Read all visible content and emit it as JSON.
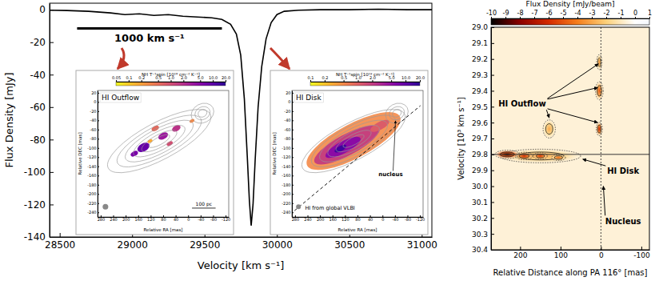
{
  "chart_data": [
    {
      "type": "line",
      "xlabel": "Velocity [km s⁻¹]",
      "ylabel": "Flux Density [mJy]",
      "xlim": [
        28430,
        31070
      ],
      "ylim": [
        -140,
        4
      ],
      "xticks": [
        28500,
        29000,
        29500,
        30000,
        30500,
        31000
      ],
      "yticks": [
        0,
        -20,
        -40,
        -60,
        -80,
        -100,
        -120,
        -140
      ],
      "color": "#000000",
      "x": [
        28430,
        28550,
        28700,
        28850,
        28950,
        29050,
        29150,
        29250,
        29350,
        29450,
        29550,
        29620,
        29680,
        29720,
        29750,
        29775,
        29795,
        29810,
        29822,
        29835,
        29850,
        29870,
        29895,
        29925,
        29960,
        30000,
        30050,
        30150,
        30300,
        30500,
        30700,
        30900,
        31070
      ],
      "values": [
        -0.3,
        -0.5,
        -1,
        -2,
        -3,
        -2.5,
        -3.5,
        -3,
        -4,
        -4.5,
        -5,
        -6,
        -9,
        -15,
        -28,
        -55,
        -90,
        -118,
        -133,
        -120,
        -92,
        -60,
        -35,
        -18,
        -8,
        -3,
        -1,
        -0.3,
        0,
        0,
        0.3,
        0,
        0
      ],
      "annotations": [
        {
          "text": "1000 km s⁻¹",
          "x": [
            28620,
            29620
          ],
          "y": -11.5
        }
      ],
      "insets": [
        {
          "title": "HI Outflow",
          "xlabel": "Relative RA [mas]",
          "ylabel": "Relative DEC [mas]",
          "xlim": [
            290,
            -130
          ],
          "xticks": [
            280,
            240,
            200,
            160,
            120,
            80,
            40,
            0,
            -40,
            -80,
            -120
          ],
          "ylim": [
            -250,
            25
          ],
          "yticks": [
            20,
            0,
            -20,
            -40,
            -60,
            -80,
            -100,
            -120,
            -140,
            -160,
            -180,
            -200,
            -220,
            -240
          ],
          "colorbar": {
            "label": "NH T⁻¹spin [10¹⁸ cm⁻² K⁻¹]",
            "lim": [
              0.05,
              20
            ],
            "log": true,
            "ticks": [
              0.05,
              0.1,
              0.2,
              0.5,
              {
                "value": 1,
                "label": "1.0"
              },
              {
                "value": 2,
                "label": "2.0"
              },
              {
                "value": 5,
                "label": "5.0"
              },
              {
                "value": 10,
                "label": "10.0"
              },
              {
                "value": 20,
                "label": "20.0"
              }
            ]
          },
          "scale_bar": "100 pc"
        },
        {
          "title": "HI Disk",
          "xlabel": "Relative RA [mas]",
          "ylabel": "Relative DEC [mas]",
          "xlim": [
            290,
            -130
          ],
          "xticks": [
            280,
            240,
            200,
            160,
            120,
            80,
            40,
            0,
            -40,
            -80,
            -120
          ],
          "ylim": [
            -250,
            25
          ],
          "yticks": [
            20,
            0,
            -20,
            -40,
            -60,
            -80,
            -100,
            -120,
            -140,
            -160,
            -180,
            -200,
            -220,
            -240
          ],
          "colorbar": {
            "label": "NH T⁻¹spin [10¹⁹ cm⁻² K⁻¹]",
            "lim": [
              0.1,
              20
            ],
            "log": true,
            "ticks": [
              0.1,
              0.2,
              0.5,
              {
                "value": 1,
                "label": "1.0"
              },
              {
                "value": 2,
                "label": "2.0"
              },
              {
                "value": 5,
                "label": "5.0"
              },
              {
                "value": 10,
                "label": "10.0"
              },
              {
                "value": 20,
                "label": "20.0"
              }
            ]
          },
          "marker_label": "nucleus",
          "beam_label": "HI from global VLBI"
        }
      ]
    },
    {
      "type": "heatmap",
      "xlabel": "Relative Distance along PA 116° [mas]",
      "ylabel": "Velocity [10³ km s⁻¹]",
      "xlim": [
        272,
        -120
      ],
      "xticks": [
        200,
        100,
        0,
        -100
      ],
      "ylim": [
        30.4,
        29.0
      ],
      "yticks": [
        {
          "value": 29.0,
          "label": "29.0"
        },
        {
          "value": 29.1,
          "label": "29.1"
        },
        {
          "value": 29.2,
          "label": "29.2"
        },
        {
          "value": 29.3,
          "label": "29.3"
        },
        {
          "value": 29.4,
          "label": "29.4"
        },
        {
          "value": 29.5,
          "label": "29.5"
        },
        {
          "value": 29.6,
          "label": "29.6"
        },
        {
          "value": 29.7,
          "label": "29.7"
        },
        {
          "value": 29.8,
          "label": "29.8"
        },
        {
          "value": 29.9,
          "label": "29.9"
        },
        {
          "value": 30.0,
          "label": "30.0"
        },
        {
          "value": 30.1,
          "label": "30.1"
        },
        {
          "value": 30.2,
          "label": "30.2"
        },
        {
          "value": 30.3,
          "label": "30.3"
        },
        {
          "value": 30.4,
          "label": "30.4"
        }
      ],
      "colorbar": {
        "label": "Flux Density [mJy/beam]",
        "lim": [
          -10,
          1
        ],
        "ticks": [
          -10,
          -9,
          -8,
          -7,
          -6,
          -5,
          -4,
          -3,
          -2,
          -1,
          0,
          1
        ],
        "stops": [
          -10,
          -8,
          -6,
          -4,
          -2,
          0,
          1
        ],
        "colors": [
          "#000000",
          "#8b0000",
          "#d42a00",
          "#f57e1c",
          "#fbd07a",
          "#ffffff",
          "#f4f8ff"
        ]
      },
      "background": -0.6,
      "features": [
        {
          "x": 150,
          "y": 29.81,
          "dx": 105,
          "dy": 0.045,
          "value": -3
        },
        {
          "x": 232,
          "y": 29.8,
          "dx": 32,
          "dy": 0.028,
          "value": -9.5
        },
        {
          "x": 190,
          "y": 29.81,
          "dx": 22,
          "dy": 0.025,
          "value": -6.5
        },
        {
          "x": 150,
          "y": 29.81,
          "dx": 18,
          "dy": 0.022,
          "value": -6
        },
        {
          "x": 105,
          "y": 29.82,
          "dx": 18,
          "dy": 0.02,
          "value": -4.5
        },
        {
          "x": 4,
          "y": 29.22,
          "dx": 7,
          "dy": 0.05,
          "value": -3.5
        },
        {
          "x": 4,
          "y": 29.4,
          "dx": 10,
          "dy": 0.06,
          "value": -5
        },
        {
          "x": 4,
          "y": 29.64,
          "dx": 8,
          "dy": 0.045,
          "value": -6.5
        },
        {
          "x": 128,
          "y": 29.64,
          "dx": 16,
          "dy": 0.06,
          "value": -3
        }
      ],
      "hline": 29.8,
      "vline": 0,
      "annotations": [
        {
          "text": "HI Outflow",
          "x": 195,
          "y": 29.48,
          "targets": [
            [
              6,
              29.23
            ],
            [
              8,
              29.38
            ],
            [
              8,
              29.6
            ],
            [
              128,
              29.57
            ]
          ]
        },
        {
          "text": "HI Disk",
          "x": -55,
          "y": 29.9,
          "targets": [
            [
              45,
              29.83
            ]
          ]
        },
        {
          "text": "Nucleus",
          "x": -55,
          "y": 30.22,
          "targets": [
            [
              -6,
              30.0
            ]
          ]
        }
      ]
    }
  ]
}
